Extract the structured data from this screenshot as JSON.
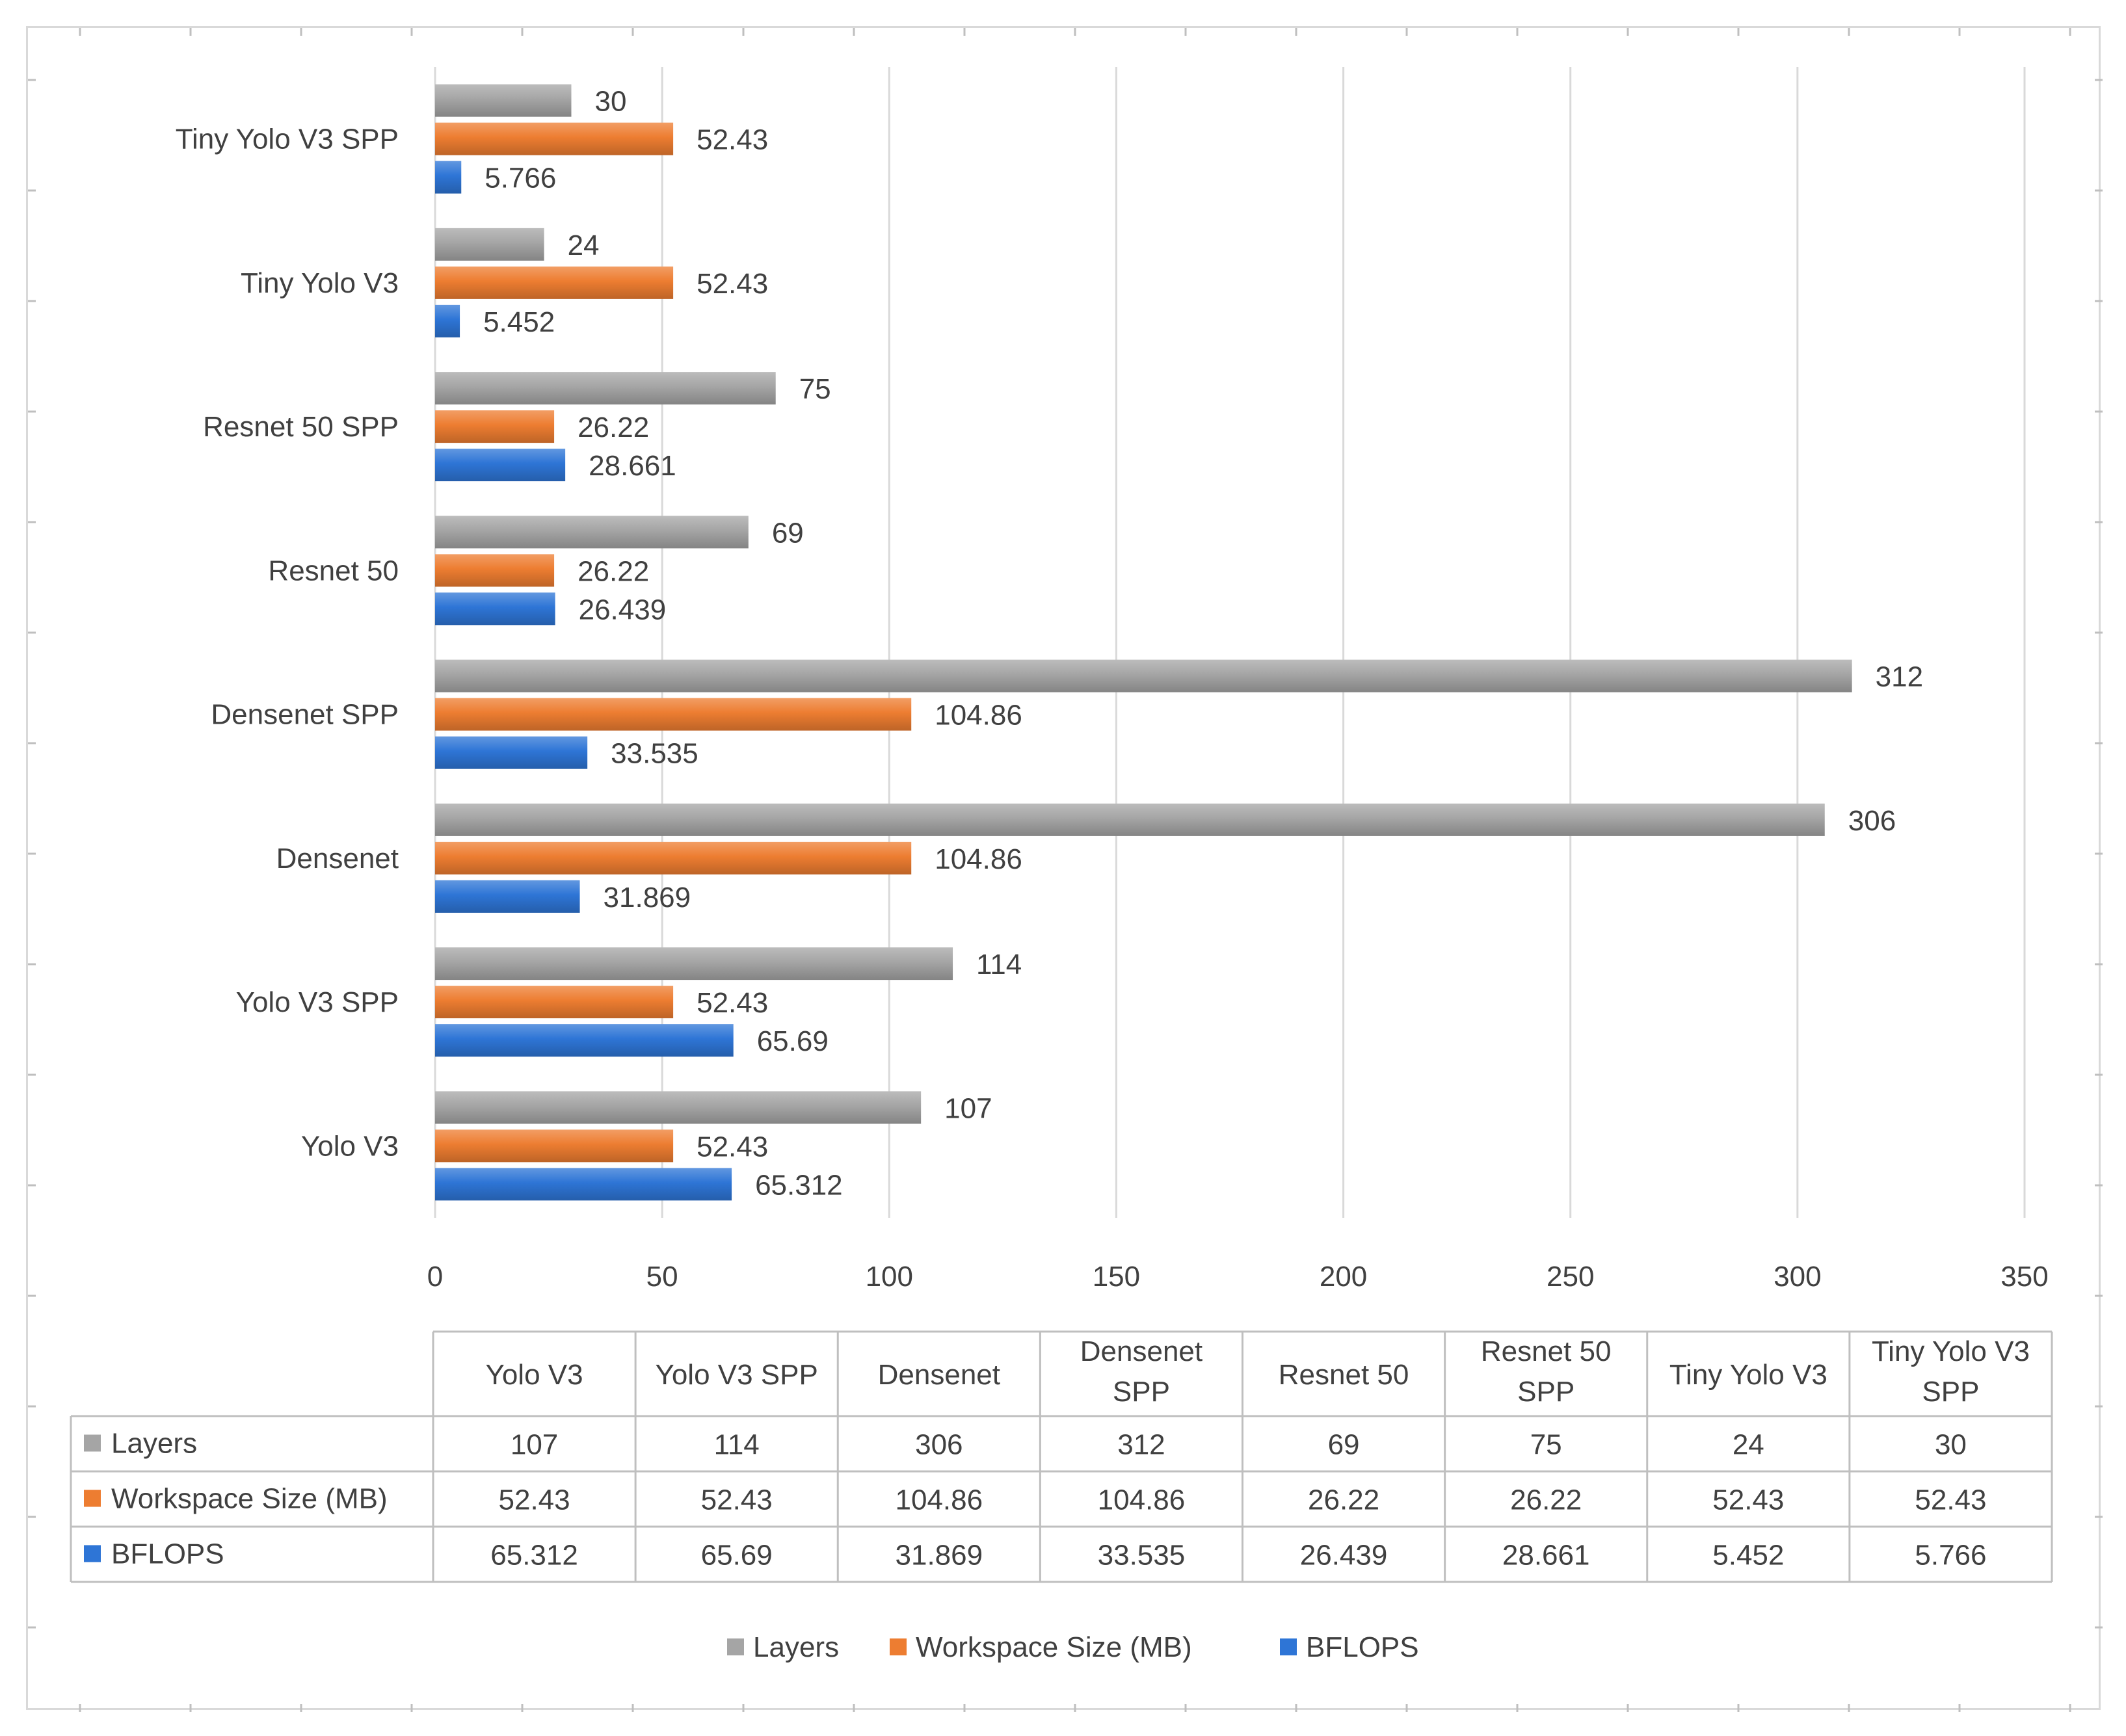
{
  "chart_data": {
    "type": "bar",
    "orientation": "horizontal",
    "categories": [
      "Yolo V3",
      "Yolo V3 SPP",
      "Densenet",
      "Densenet SPP",
      "Resnet 50",
      "Resnet 50 SPP",
      "Tiny Yolo V3",
      "Tiny Yolo V3 SPP"
    ],
    "table_headers": [
      "Yolo V3",
      "Yolo V3 SPP",
      "Densenet",
      "Densenet\nSPP",
      "Resnet 50",
      "Resnet 50\nSPP",
      "Tiny Yolo V3",
      "Tiny Yolo V3\nSPP"
    ],
    "series": [
      {
        "name": "Layers",
        "color": "#a5a5a5",
        "values": [
          107,
          114,
          306,
          312,
          69,
          75,
          24,
          30
        ],
        "labels": [
          "107",
          "114",
          "306",
          "312",
          "69",
          "75",
          "24",
          "30"
        ]
      },
      {
        "name": "Workspace Size (MB)",
        "color": "#ed7d31",
        "values": [
          52.43,
          52.43,
          104.86,
          104.86,
          26.22,
          26.22,
          52.43,
          52.43
        ],
        "labels": [
          "52.43",
          "52.43",
          "104.86",
          "104.86",
          "26.22",
          "26.22",
          "52.43",
          "52.43"
        ]
      },
      {
        "name": "BFLOPS",
        "color": "#2e75d6",
        "values": [
          65.312,
          65.69,
          31.869,
          33.535,
          26.439,
          28.661,
          5.452,
          5.766
        ],
        "labels": [
          "65.312",
          "65.69",
          "31.869",
          "33.535",
          "26.439",
          "28.661",
          "5.452",
          "5.766"
        ]
      }
    ],
    "xlim": [
      0,
      350
    ],
    "xticks": [
      0,
      50,
      100,
      150,
      200,
      250,
      300,
      350
    ],
    "grid": true,
    "legend": "bottom",
    "data_table": true
  }
}
